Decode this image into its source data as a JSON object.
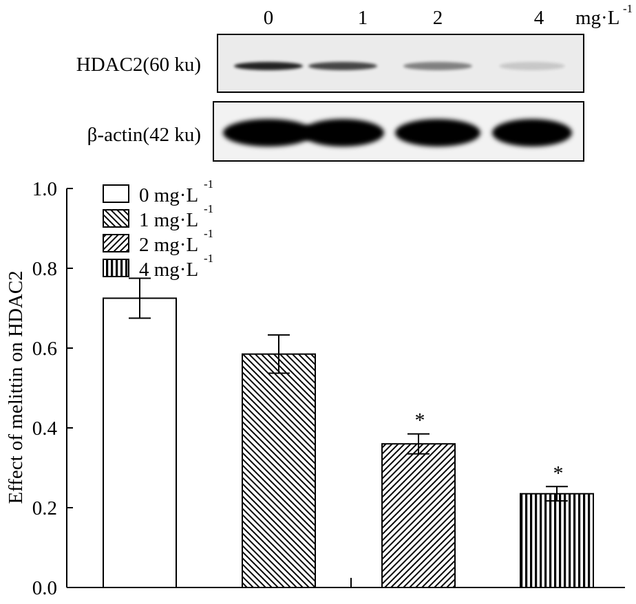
{
  "blot": {
    "lane_labels": [
      "0",
      "1",
      "2",
      "4"
    ],
    "unit": "mg·L",
    "unit_exponent": "-1",
    "rows": [
      {
        "label": "HDAC2(60 ku)",
        "band_intensity": [
          0.85,
          0.7,
          0.45,
          0.15
        ]
      },
      {
        "label": "β-actin(42 ku)",
        "band_intensity": [
          1.0,
          1.0,
          1.0,
          1.0
        ]
      }
    ]
  },
  "chart_data": {
    "type": "bar",
    "title": "",
    "xlabel": "",
    "ylabel": "Effect of  melittin on HDAC2",
    "categories": [
      "0 mg·L-1",
      "1 mg·L-1",
      "2 mg·L-1",
      "4 mg·L-1"
    ],
    "series": [
      {
        "values": [
          0.725,
          0.585,
          0.36,
          0.235
        ],
        "errors": [
          0.05,
          0.048,
          0.025,
          0.018
        ],
        "significance": [
          "",
          "",
          "*",
          "*"
        ]
      }
    ],
    "ylim": [
      0.0,
      1.0
    ],
    "yticks": [
      "0.0",
      "0.2",
      "0.4",
      "0.6",
      "0.8",
      "1.0"
    ],
    "grid": false,
    "legend": {
      "placement": "top-left",
      "entries": [
        {
          "label": "0 mg·L",
          "exponent": "-1",
          "pattern": "none"
        },
        {
          "label": "1 mg·L",
          "exponent": "-1",
          "pattern": "back-diagonal"
        },
        {
          "label": "2 mg·L",
          "exponent": "-1",
          "pattern": "forward-diagonal"
        },
        {
          "label": "4 mg·L",
          "exponent": "-1",
          "pattern": "vertical"
        }
      ]
    }
  }
}
